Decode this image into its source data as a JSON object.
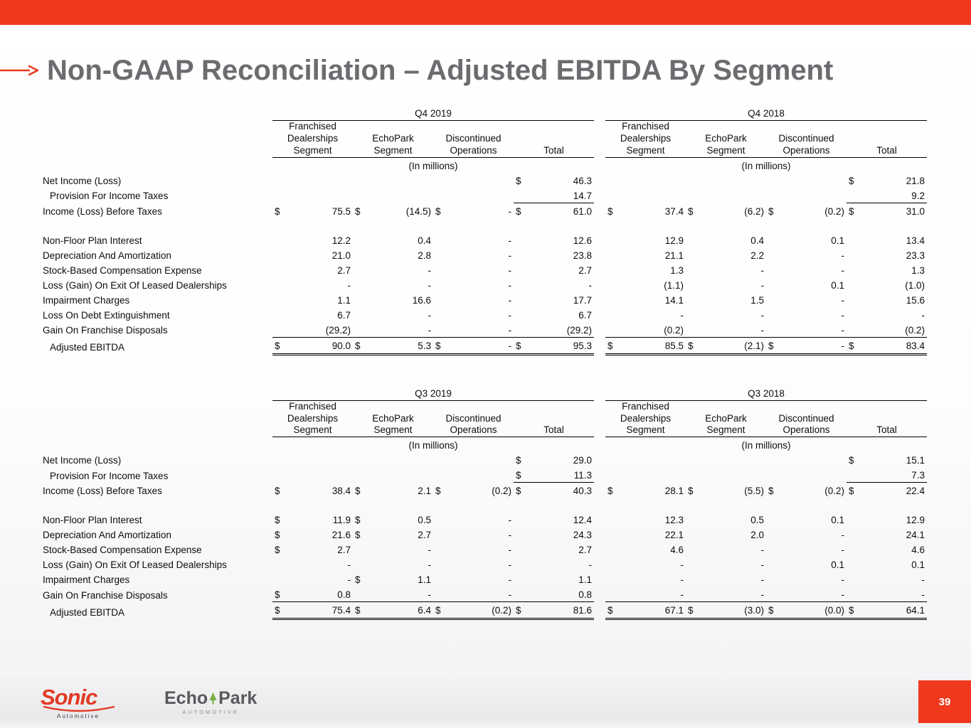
{
  "title": "Non-GAAP Reconciliation – Adjusted EBITDA By Segment",
  "page_number": "39",
  "colors": {
    "accent_red": "#f0381c",
    "title_gray": "#6b6c6f",
    "sonic_red": "#e23a26",
    "echopark_green": "#76b043"
  },
  "footer": {
    "sonic_name": "Sonic",
    "sonic_sub": "Automotive",
    "echopark_echo": "Echo",
    "echopark_park": "Park",
    "echopark_sub": "AUTOMOTIVE"
  },
  "tables": [
    {
      "periods": [
        "Q4 2019",
        "Q4 2018"
      ],
      "column_headers": [
        "Franchised Dealerships Segment",
        "EchoPark Segment",
        "Discontinued Operations",
        "Total"
      ],
      "units_label": "(In millions)",
      "rows": [
        {
          "label": "Net Income (Loss)",
          "cells": [
            "",
            "",
            "",
            "$ 46.3",
            "",
            "",
            "",
            "$ 21.8"
          ]
        },
        {
          "label": "Provision For Income Taxes",
          "indent": true,
          "cls": "sum",
          "cells": [
            "",
            "",
            "",
            "14.7",
            "",
            "",
            "",
            "9.2"
          ]
        },
        {
          "label": "Income (Loss) Before Taxes",
          "cells": [
            "$ 75.5",
            "$ (14.5)",
            "$ -",
            "$ 61.0",
            "$ 37.4",
            "$ (6.2)",
            "$ (0.2)",
            "$ 31.0"
          ]
        },
        {
          "spacer": true
        },
        {
          "label": "Non-Floor Plan Interest",
          "cells": [
            "12.2",
            "0.4",
            "-",
            "12.6",
            "12.9",
            "0.4",
            "0.1",
            "13.4"
          ]
        },
        {
          "label": "Depreciation And Amortization",
          "cells": [
            "21.0",
            "2.8",
            "-",
            "23.8",
            "21.1",
            "2.2",
            "-",
            "23.3"
          ]
        },
        {
          "label": "Stock-Based Compensation Expense",
          "cells": [
            "2.7",
            "-",
            "-",
            "2.7",
            "1.3",
            "-",
            "-",
            "1.3"
          ]
        },
        {
          "label": "Loss (Gain) On Exit Of Leased Dealerships",
          "cells": [
            "-",
            "-",
            "-",
            "-",
            "(1.1)",
            "-",
            "0.1",
            "(1.0)"
          ]
        },
        {
          "label": "Impairment Charges",
          "cells": [
            "1.1",
            "16.6",
            "-",
            "17.7",
            "14.1",
            "1.5",
            "-",
            "15.6"
          ]
        },
        {
          "label": "Loss On Debt Extinguishment",
          "cells": [
            "6.7",
            "-",
            "-",
            "6.7",
            "-",
            "-",
            "-",
            "-"
          ]
        },
        {
          "label": "Gain On Franchise Disposals",
          "cls": "grp",
          "cells": [
            "(29.2)",
            "-",
            "-",
            "(29.2)",
            "(0.2)",
            "-",
            "-",
            "(0.2)"
          ]
        },
        {
          "label": "Adjusted EBITDA",
          "indent": true,
          "cls": "ebitda",
          "cells": [
            "$ 90.0",
            "$ 5.3",
            "$ -",
            "$ 95.3",
            "$ 85.5",
            "$ (2.1)",
            "$ -",
            "$ 83.4"
          ]
        }
      ]
    },
    {
      "periods": [
        "Q3 2019",
        "Q3 2018"
      ],
      "column_headers": [
        "Franchised Dealerships Segment",
        "EchoPark Segment",
        "Discontinued Operations",
        "Total"
      ],
      "units_label": "(In millions)",
      "rows": [
        {
          "label": "Net Income (Loss)",
          "cells": [
            "",
            "",
            "",
            "$ 29.0",
            "",
            "",
            "",
            "$ 15.1"
          ]
        },
        {
          "label": "Provision For Income Taxes",
          "indent": true,
          "cls": "sum",
          "cells": [
            "",
            "",
            "",
            "$ 11.3",
            "",
            "",
            "",
            "7.3"
          ]
        },
        {
          "label": "Income (Loss) Before Taxes",
          "cells": [
            "$ 38.4",
            "$ 2.1",
            "$ (0.2)",
            "$ 40.3",
            "$ 28.1",
            "$ (5.5)",
            "$ (0.2)",
            "$ 22.4"
          ]
        },
        {
          "spacer": true
        },
        {
          "label": "Non-Floor Plan Interest",
          "cells": [
            "$ 11.9",
            "$ 0.5",
            "-",
            "12.4",
            "12.3",
            "0.5",
            "0.1",
            "12.9"
          ]
        },
        {
          "label": "Depreciation And Amortization",
          "cells": [
            "$ 21.6",
            "$ 2.7",
            "-",
            "24.3",
            "22.1",
            "2.0",
            "-",
            "24.1"
          ]
        },
        {
          "label": "Stock-Based Compensation Expense",
          "cells": [
            "$ 2.7",
            "-",
            "-",
            "2.7",
            "4.6",
            "-",
            "-",
            "4.6"
          ]
        },
        {
          "label": "Loss (Gain) On Exit Of Leased Dealerships",
          "cells": [
            "-",
            "-",
            "-",
            "-",
            "-",
            "-",
            "0.1",
            "0.1"
          ]
        },
        {
          "label": "Impairment Charges",
          "cells": [
            "-",
            "$ 1.1",
            "-",
            "1.1",
            "-",
            "-",
            "-",
            "-"
          ]
        },
        {
          "label": "Gain On Franchise Disposals",
          "cls": "grp",
          "cells": [
            "$ 0.8",
            "-",
            "-",
            "0.8",
            "-",
            "-",
            "-",
            "-"
          ]
        },
        {
          "label": "Adjusted EBITDA",
          "indent": true,
          "cls": "ebitda",
          "cells": [
            "$ 75.4",
            "$ 6.4",
            "$ (0.2)",
            "$ 81.6",
            "$ 67.1",
            "$ (3.0)",
            "$ (0.0)",
            "$ 64.1"
          ]
        }
      ]
    }
  ]
}
